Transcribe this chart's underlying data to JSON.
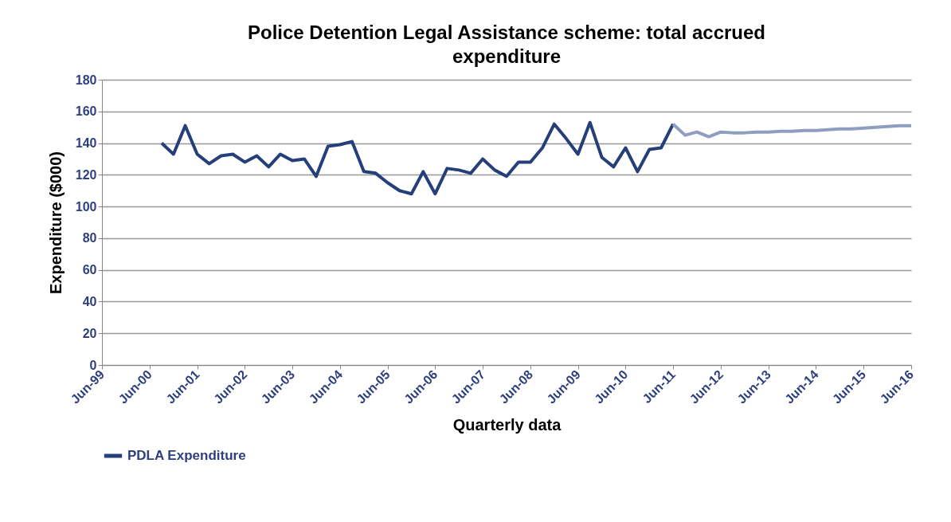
{
  "chart_data": {
    "type": "line",
    "title": "Police Detention Legal Assistance scheme: total accrued expenditure",
    "xlabel": "Quarterly data",
    "ylabel": "Expenditure ($000)",
    "xlim": [
      "1999-06",
      "2016-06"
    ],
    "xticks": [
      {
        "value": "1999-06",
        "label": "Jun-99"
      },
      {
        "value": "2000-06",
        "label": "Jun-00"
      },
      {
        "value": "2001-06",
        "label": "Jun-01"
      },
      {
        "value": "2002-06",
        "label": "Jun-02"
      },
      {
        "value": "2003-06",
        "label": "Jun-03"
      },
      {
        "value": "2004-06",
        "label": "Jun-04"
      },
      {
        "value": "2005-06",
        "label": "Jun-05"
      },
      {
        "value": "2006-06",
        "label": "Jun-06"
      },
      {
        "value": "2007-06",
        "label": "Jun-07"
      },
      {
        "value": "2008-06",
        "label": "Jun-08"
      },
      {
        "value": "2009-06",
        "label": "Jun-09"
      },
      {
        "value": "2010-06",
        "label": "Jun-10"
      },
      {
        "value": "2011-06",
        "label": "Jun-11"
      },
      {
        "value": "2012-06",
        "label": "Jun-12"
      },
      {
        "value": "2013-06",
        "label": "Jun-13"
      },
      {
        "value": "2014-06",
        "label": "Jun-14"
      },
      {
        "value": "2015-06",
        "label": "Jun-15"
      },
      {
        "value": "2016-06",
        "label": "Jun-16"
      }
    ],
    "ylim": [
      0,
      180
    ],
    "yticks": [
      0,
      20,
      40,
      60,
      80,
      100,
      120,
      140,
      160,
      180
    ],
    "grid": "y",
    "legend": "bottom",
    "marker": "none",
    "line_style": "solid",
    "series": [
      {
        "name": "PDLA Expenditure",
        "color": "#253f7a",
        "x": [
          "2000-09",
          "2000-12",
          "2001-03",
          "2001-06",
          "2001-09",
          "2001-12",
          "2002-03",
          "2002-06",
          "2002-09",
          "2002-12",
          "2003-03",
          "2003-06",
          "2003-09",
          "2003-12",
          "2004-03",
          "2004-06",
          "2004-09",
          "2004-12",
          "2005-03",
          "2005-06",
          "2005-09",
          "2005-12",
          "2006-03",
          "2006-06",
          "2006-09",
          "2006-12",
          "2007-03",
          "2007-06",
          "2007-09",
          "2007-12",
          "2008-03",
          "2008-06",
          "2008-09",
          "2008-12",
          "2009-03",
          "2009-06",
          "2009-09",
          "2009-12",
          "2010-03",
          "2010-06",
          "2010-09",
          "2010-12",
          "2011-03",
          "2011-06"
        ],
        "values": [
          140,
          133,
          151,
          133,
          127,
          132,
          133,
          128,
          132,
          125,
          133,
          129,
          130,
          119,
          138,
          139,
          141,
          122,
          121,
          115,
          110,
          108,
          122,
          108,
          124,
          123,
          121,
          130,
          123,
          119,
          128,
          128,
          137,
          152,
          143,
          133,
          153,
          131,
          125,
          137,
          122,
          136,
          137,
          152
        ]
      },
      {
        "color": "#8e9dc0",
        "x": [
          "2011-06",
          "2011-09",
          "2011-12",
          "2012-03",
          "2012-06",
          "2012-09",
          "2012-12",
          "2013-03",
          "2013-06",
          "2013-09",
          "2013-12",
          "2014-03",
          "2014-06",
          "2014-09",
          "2014-12",
          "2015-03",
          "2015-06",
          "2015-09",
          "2015-12",
          "2016-03",
          "2016-06"
        ],
        "values": [
          152,
          145,
          147,
          144,
          147,
          146.5,
          146.5,
          147,
          147,
          147.5,
          147.5,
          148,
          148,
          148.5,
          149,
          149,
          149.5,
          150,
          150.5,
          151,
          151
        ]
      }
    ]
  }
}
